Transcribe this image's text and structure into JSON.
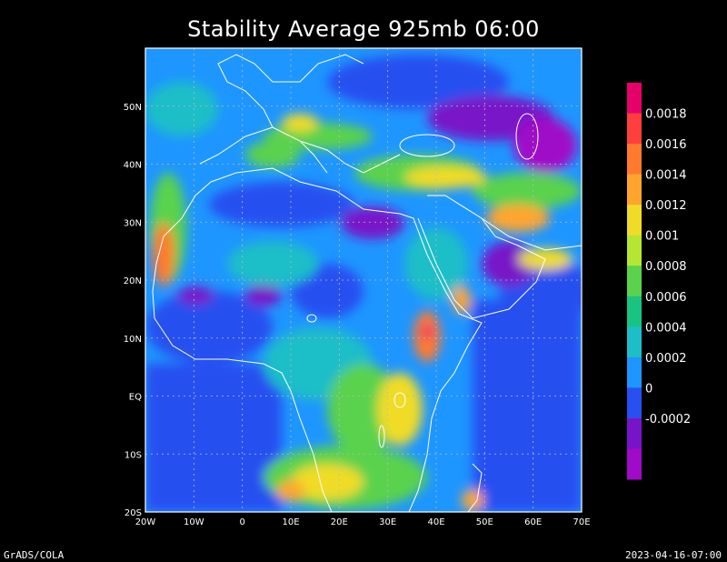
{
  "title": "Stability Average 925mb 06:00",
  "footer": {
    "left": "GrADS/COLA",
    "right": "2023-04-16-07:00"
  },
  "map": {
    "lon_range": [
      -20,
      70
    ],
    "lat_range": [
      -20,
      60
    ],
    "lon_ticks": [
      {
        "value": -20,
        "label": "20W"
      },
      {
        "value": -10,
        "label": "10W"
      },
      {
        "value": 0,
        "label": "0"
      },
      {
        "value": 10,
        "label": "10E"
      },
      {
        "value": 20,
        "label": "20E"
      },
      {
        "value": 30,
        "label": "30E"
      },
      {
        "value": 40,
        "label": "40E"
      },
      {
        "value": 50,
        "label": "50E"
      },
      {
        "value": 60,
        "label": "60E"
      },
      {
        "value": 70,
        "label": "70E"
      }
    ],
    "lat_ticks": [
      {
        "value": -20,
        "label": "20S"
      },
      {
        "value": -10,
        "label": "10S"
      },
      {
        "value": 0,
        "label": "EQ"
      },
      {
        "value": 10,
        "label": "10N"
      },
      {
        "value": 20,
        "label": "20N"
      },
      {
        "value": 30,
        "label": "30N"
      },
      {
        "value": 40,
        "label": "40N"
      },
      {
        "value": 50,
        "label": "50N"
      }
    ],
    "grid": true
  },
  "colorbar": {
    "levels": [
      {
        "label": "",
        "color": "#e8006a"
      },
      {
        "label": "0.0018",
        "color": "#ff3e3e"
      },
      {
        "label": "0.0016",
        "color": "#ff7a2e"
      },
      {
        "label": "0.0014",
        "color": "#ffa52e"
      },
      {
        "label": "0.0012",
        "color": "#f0dc28"
      },
      {
        "label": "0.001",
        "color": "#b4e632"
      },
      {
        "label": "0.0008",
        "color": "#5ad24e"
      },
      {
        "label": "0.0006",
        "color": "#19c382"
      },
      {
        "label": "0.0004",
        "color": "#1ebec8"
      },
      {
        "label": "0.0002",
        "color": "#1e96ff"
      },
      {
        "label": "0",
        "color": "#2850f0"
      },
      {
        "label": "-0.0002",
        "color": "#7814c8"
      },
      {
        "label": "",
        "color": "#a00ac8"
      }
    ]
  }
}
